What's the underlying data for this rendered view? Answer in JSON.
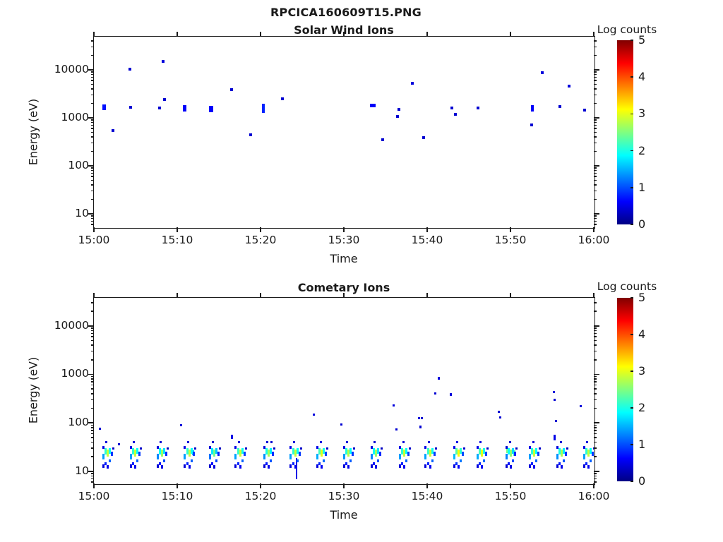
{
  "figure": {
    "title": "RPCICA160609T15.PNG",
    "background": "#ffffff",
    "axis_color": "#1a1a1a"
  },
  "colorbar": {
    "label": "Log counts",
    "ticks": [
      0,
      1,
      2,
      3,
      4,
      5
    ],
    "min": 0,
    "max": 5,
    "colormap": "jet"
  },
  "chart_data": [
    {
      "type": "heatmap",
      "title": "Solar Wind Ions",
      "xlabel": "Time",
      "ylabel": "Energy (eV)",
      "x_ticks": [
        "15:00",
        "15:10",
        "15:20",
        "15:30",
        "15:40",
        "15:50",
        "16:00"
      ],
      "x_range_minutes": [
        0,
        60
      ],
      "y_ticks": [
        10,
        100,
        1000,
        10000
      ],
      "y_scale": "log",
      "ylim_eV": [
        5.2,
        49000
      ],
      "grid": false,
      "legend": "colorbar Log counts 0-5, jet",
      "points_format": "[time_min_after_1500, energy_eV, log_counts, w_px, h_px]",
      "points": [
        [
          1.2,
          1650,
          0.7,
          5,
          8
        ],
        [
          2.3,
          540,
          0.4,
          4,
          4
        ],
        [
          4.3,
          10200,
          0.4,
          4,
          4
        ],
        [
          4.4,
          1650,
          0.4,
          4,
          4
        ],
        [
          7.9,
          1580,
          0.4,
          4,
          4
        ],
        [
          8.3,
          15000,
          0.45,
          4,
          4
        ],
        [
          8.5,
          2400,
          0.4,
          4,
          4
        ],
        [
          10.9,
          1600,
          0.6,
          5,
          9
        ],
        [
          14.1,
          1520,
          0.6,
          6,
          9
        ],
        [
          16.5,
          3900,
          0.4,
          4,
          4
        ],
        [
          18.8,
          440,
          0.4,
          4,
          4
        ],
        [
          20.3,
          1550,
          0.8,
          4,
          13
        ],
        [
          22.6,
          2500,
          0.4,
          4,
          4
        ],
        [
          33.5,
          1800,
          0.6,
          8,
          5
        ],
        [
          34.7,
          350,
          0.4,
          4,
          4
        ],
        [
          36.4,
          1050,
          0.4,
          4,
          4
        ],
        [
          36.6,
          1500,
          0.4,
          4,
          4
        ],
        [
          38.2,
          5300,
          0.45,
          4,
          4
        ],
        [
          39.6,
          390,
          0.4,
          4,
          4
        ],
        [
          43.0,
          1600,
          0.4,
          4,
          4
        ],
        [
          43.4,
          1200,
          0.4,
          4,
          4
        ],
        [
          46.1,
          1600,
          0.4,
          4,
          4
        ],
        [
          52.5,
          700,
          0.4,
          4,
          4
        ],
        [
          52.6,
          1600,
          0.6,
          4,
          9
        ],
        [
          53.8,
          8800,
          0.45,
          4,
          4
        ],
        [
          55.9,
          1700,
          0.4,
          4,
          4
        ],
        [
          57.0,
          4600,
          0.45,
          4,
          4
        ],
        [
          58.9,
          1450,
          0.4,
          4,
          4
        ]
      ]
    },
    {
      "type": "heatmap",
      "title": "Cometary Ions",
      "xlabel": "Time",
      "ylabel": "Energy (eV)",
      "x_ticks": [
        "15:00",
        "15:10",
        "15:20",
        "15:30",
        "15:40",
        "15:50",
        "16:00"
      ],
      "x_range_minutes": [
        0,
        60
      ],
      "y_ticks": [
        10,
        100,
        1000,
        10000
      ],
      "y_scale": "log",
      "ylim_eV": [
        5.6,
        38000
      ],
      "grid": false,
      "legend": "colorbar Log counts 0-5, jet",
      "points_format": "[time_min_after_1500, energy_eV, log_counts, w_px, h_px]",
      "points": [
        [
          0.76,
          75,
          0.4,
          3,
          3
        ],
        [
          3.0,
          36,
          0.4,
          3,
          3
        ],
        [
          10.5,
          88,
          0.45,
          3,
          3
        ],
        [
          11.9,
          24,
          1.6,
          3,
          7
        ],
        [
          16.6,
          52,
          0.5,
          3,
          6
        ],
        [
          21.3,
          40,
          0.4,
          3,
          3
        ],
        [
          24.35,
          11.5,
          0.5,
          2,
          30
        ],
        [
          26.4,
          150,
          0.45,
          3,
          3
        ],
        [
          29.7,
          93,
          0.4,
          3,
          3
        ],
        [
          36.0,
          225,
          0.45,
          3,
          3
        ],
        [
          36.3,
          74,
          0.4,
          3,
          3
        ],
        [
          39.0,
          126,
          0.45,
          3,
          3
        ],
        [
          39.4,
          126,
          0.4,
          3,
          3
        ],
        [
          39.2,
          83,
          0.4,
          3,
          4
        ],
        [
          41.0,
          400,
          0.4,
          3,
          3
        ],
        [
          41.4,
          820,
          0.45,
          3,
          4
        ],
        [
          42.8,
          385,
          0.45,
          3,
          4
        ],
        [
          48.6,
          170,
          0.4,
          3,
          3
        ],
        [
          48.8,
          128,
          0.4,
          3,
          3
        ],
        [
          49.6,
          27,
          2.5,
          3,
          8
        ],
        [
          50.5,
          24,
          2.2,
          3,
          8
        ],
        [
          55.2,
          430,
          0.45,
          3,
          3
        ],
        [
          55.3,
          300,
          0.4,
          3,
          3
        ],
        [
          55.5,
          110,
          0.4,
          3,
          3
        ],
        [
          55.3,
          50,
          0.5,
          3,
          8
        ],
        [
          58.4,
          220,
          0.45,
          3,
          3
        ]
      ],
      "sweep_pattern_format": "[dt_min, energy_eV, log_counts, w_px, h_px] stamped at each sweep time",
      "sweep_pattern": [
        [
          -0.47,
          31,
          0.5,
          3,
          4
        ],
        [
          -0.47,
          20,
          1.4,
          3,
          8
        ],
        [
          -0.47,
          13,
          0.45,
          3,
          5
        ],
        [
          -0.2,
          26,
          2.1,
          3,
          9
        ],
        [
          -0.2,
          14.5,
          0.8,
          3,
          4
        ],
        [
          0.06,
          23.5,
          2.85,
          3,
          10
        ],
        [
          0.06,
          12.5,
          0.55,
          3,
          5
        ],
        [
          0.32,
          26.5,
          1.9,
          3,
          8
        ],
        [
          0.32,
          16.5,
          1.1,
          3,
          4
        ],
        [
          0.58,
          23,
          0.9,
          3,
          6
        ],
        [
          -0.08,
          40,
          0.45,
          3,
          3
        ],
        [
          0.75,
          30,
          0.35,
          3,
          3
        ]
      ],
      "sweeps": [
        {
          "t": 1.6,
          "amp": 1.0
        },
        {
          "t": 4.9,
          "amp": 1.0
        },
        {
          "t": 8.1,
          "amp": 0.92
        },
        {
          "t": 11.4,
          "amp": 1.0
        },
        {
          "t": 14.4,
          "amp": 0.85
        },
        {
          "t": 17.5,
          "amp": 1.02
        },
        {
          "t": 20.9,
          "amp": 0.95
        },
        {
          "t": 24.1,
          "amp": 1.0
        },
        {
          "t": 27.3,
          "amp": 1.05
        },
        {
          "t": 30.5,
          "amp": 0.98
        },
        {
          "t": 33.8,
          "amp": 0.92
        },
        {
          "t": 37.2,
          "amp": 1.0
        },
        {
          "t": 40.3,
          "amp": 1.02
        },
        {
          "t": 43.7,
          "amp": 1.1
        },
        {
          "t": 46.5,
          "amp": 1.05
        },
        {
          "t": 50.0,
          "amp": 0.9
        },
        {
          "t": 52.8,
          "amp": 1.0
        },
        {
          "t": 56.1,
          "amp": 0.95
        },
        {
          "t": 59.3,
          "amp": 1.0
        }
      ]
    }
  ]
}
